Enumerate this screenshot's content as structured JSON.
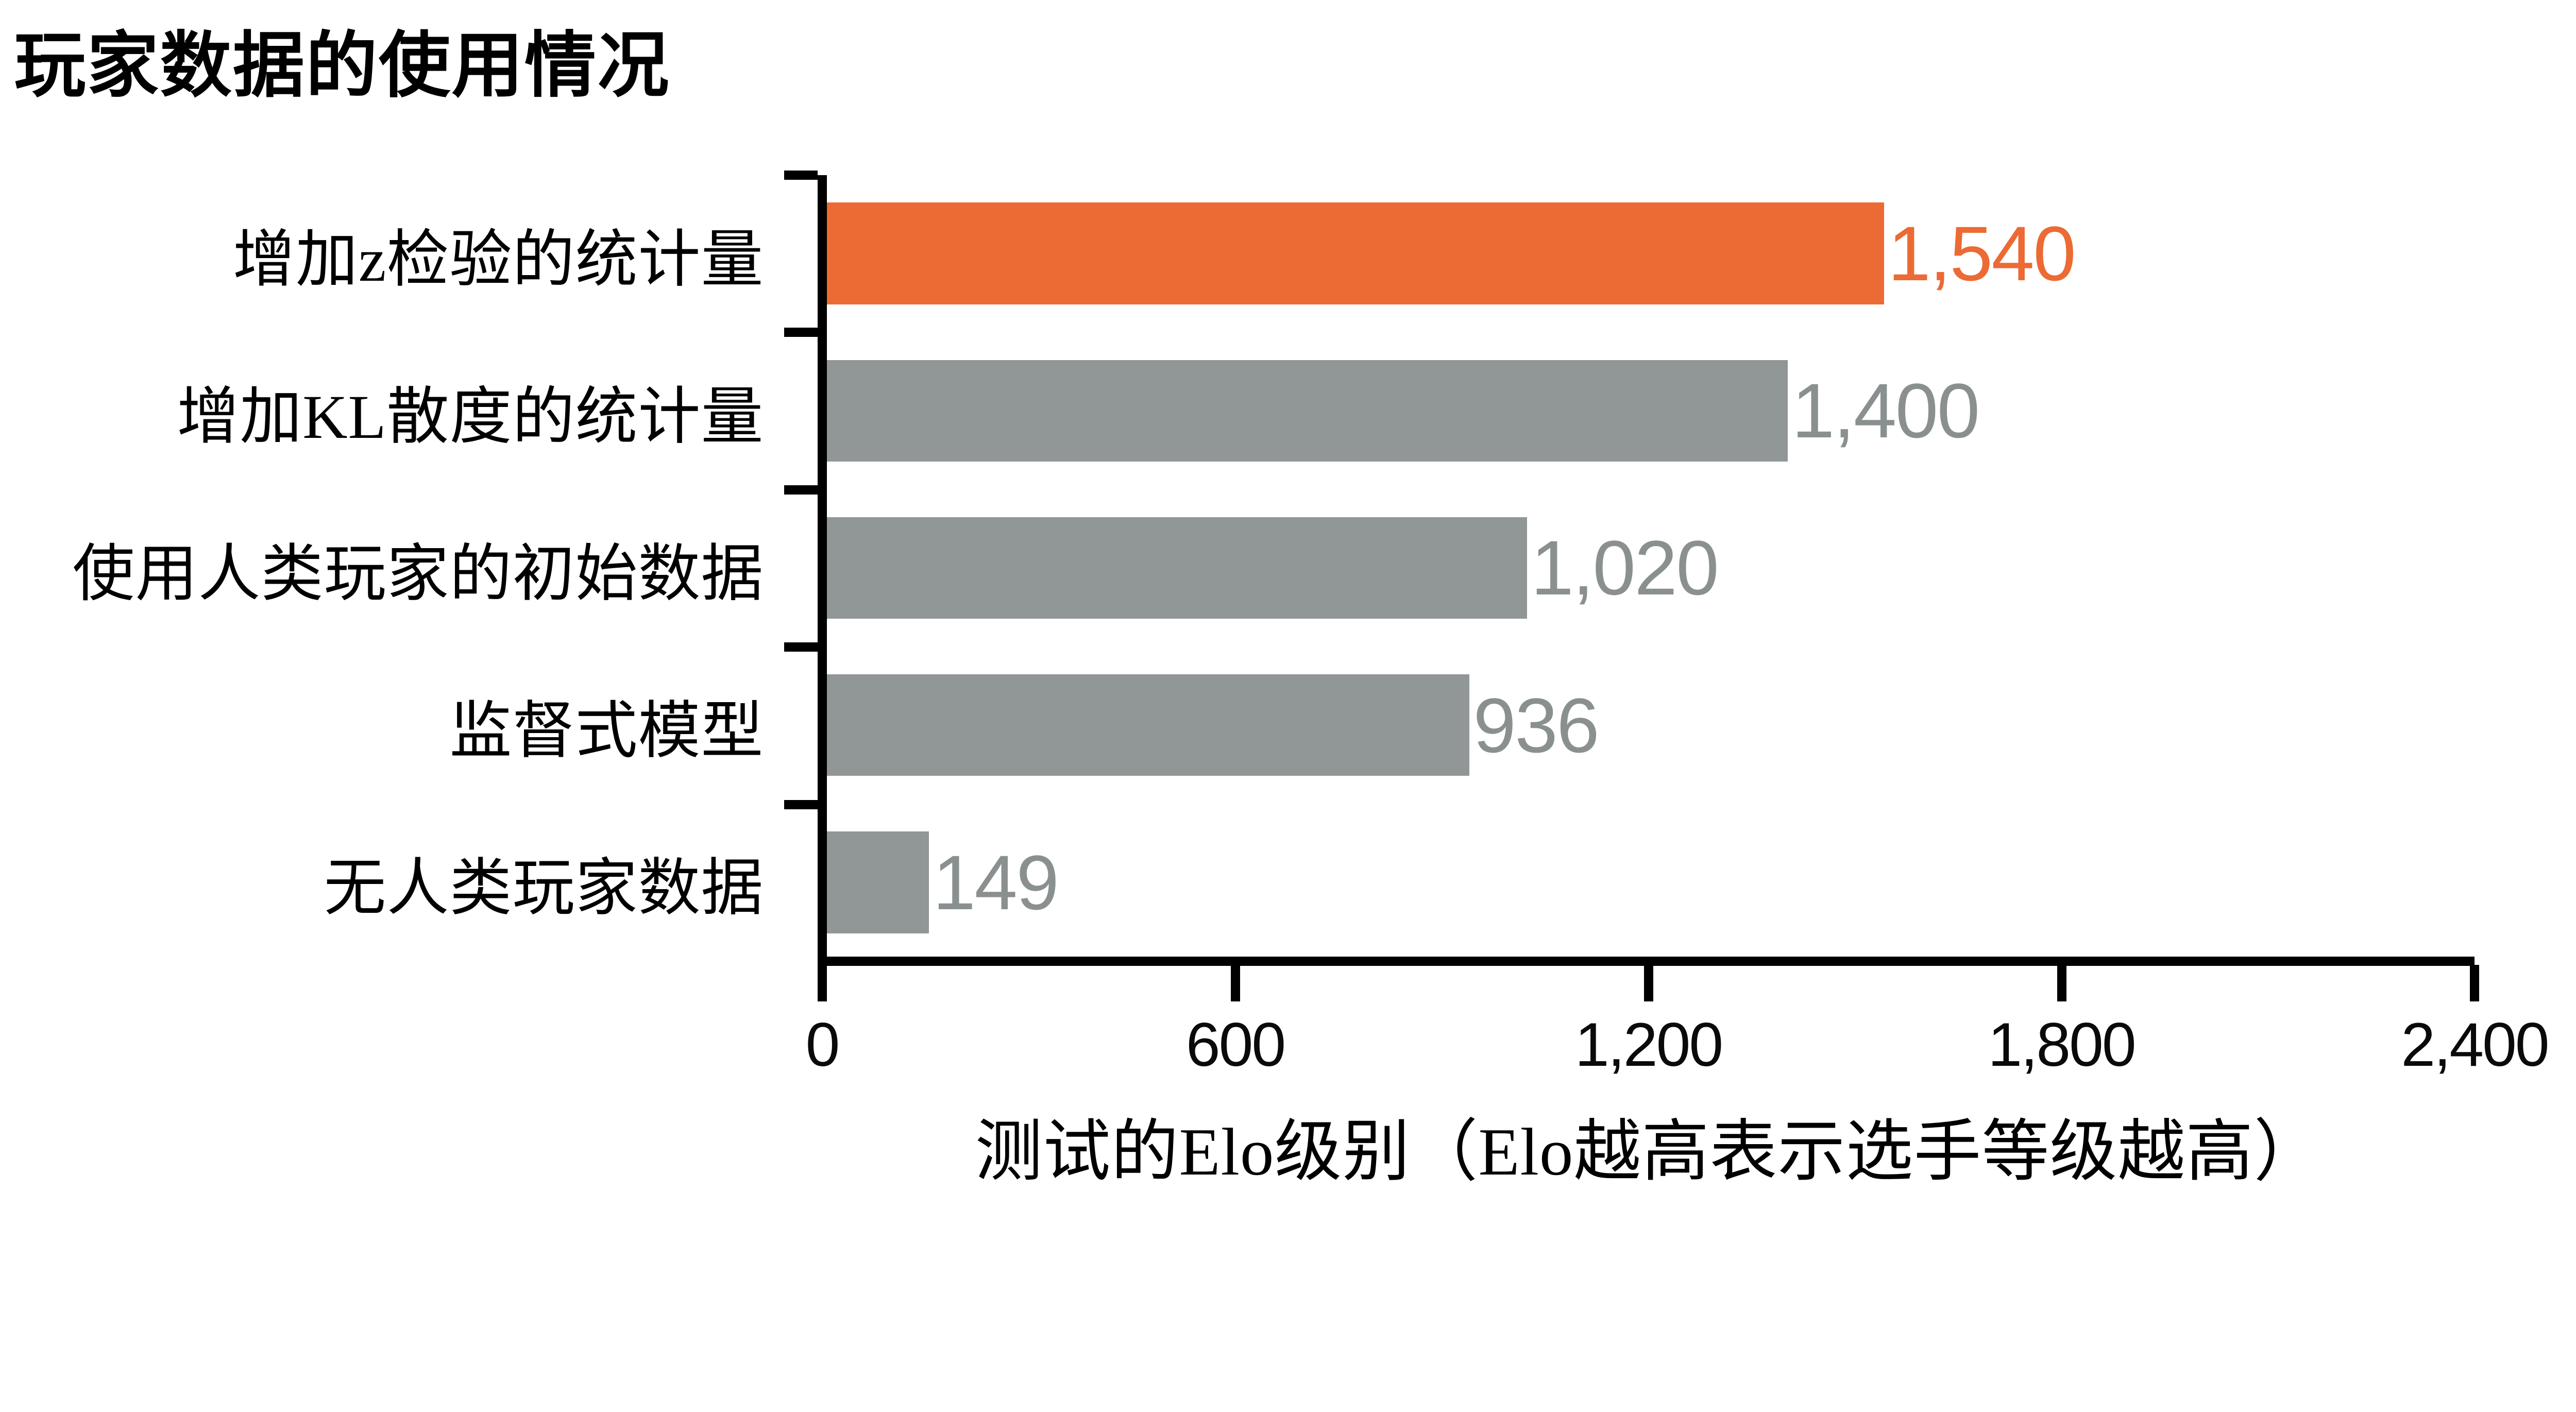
{
  "title": "玩家数据的使用情况",
  "chart_data": {
    "type": "bar",
    "orientation": "horizontal",
    "title": "玩家数据的使用情况",
    "xlabel": "测试的Elo级别（Elo越高表示选手等级越高）",
    "categories": [
      "增加z检验的统计量",
      "增加KL散度的统计量",
      "使用人类玩家的初始数据",
      "监督式模型",
      "无人类玩家数据"
    ],
    "values": [
      1540,
      1400,
      1020,
      936,
      149
    ],
    "value_labels": [
      "1,540",
      "1,400",
      "1,020",
      "936",
      "149"
    ],
    "xlim": [
      0,
      2400
    ],
    "xticks": [
      0,
      600,
      1200,
      1800,
      2400
    ],
    "xtick_labels": [
      "0",
      "600",
      "1,200",
      "1,800",
      "2,400"
    ],
    "grid": false,
    "legend": false,
    "highlight_index": 0,
    "colors": {
      "highlight_bar": "#EC6A33",
      "default_bar": "#919697",
      "highlight_value_text": "#EC6A33",
      "default_value_text": "#8A9090",
      "axis": "#000000",
      "background": "#FFFFFF"
    }
  }
}
